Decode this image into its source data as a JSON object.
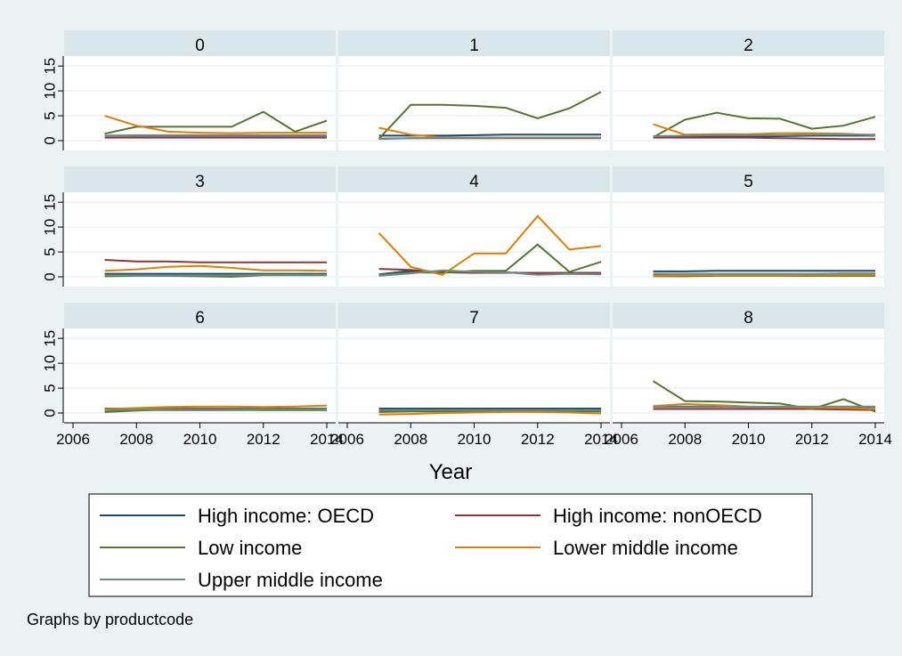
{
  "chart_data": {
    "type": "line",
    "by_variable": "productcode",
    "note": "Graphs by productcode",
    "xlabel": "Year",
    "xlim": [
      2006,
      2014
    ],
    "xticks": [
      2006,
      2008,
      2010,
      2012,
      2014
    ],
    "ylim": [
      0,
      17
    ],
    "yticks": [
      0,
      5,
      10,
      15
    ],
    "grid": true,
    "legend_position": "bottom",
    "x": [
      2007,
      2008,
      2009,
      2010,
      2011,
      2012,
      2013,
      2014
    ],
    "series_names": [
      "High income: OECD",
      "High income: nonOECD",
      "Low income",
      "Lower middle income",
      "Upper middle income"
    ],
    "series_colors": [
      "#1a476f",
      "#90353b",
      "#55752f",
      "#e37e00",
      "#6e8e84"
    ],
    "panels": [
      {
        "label": "0",
        "series": [
          [
            1.0,
            1.0,
            1.0,
            1.0,
            1.0,
            1.0,
            1.0,
            1.0
          ],
          [
            0.6,
            0.6,
            0.6,
            0.6,
            0.6,
            0.6,
            0.6,
            0.6
          ],
          [
            1.4,
            2.8,
            2.8,
            2.8,
            2.8,
            5.8,
            1.8,
            4.0
          ],
          [
            5.0,
            3.0,
            1.8,
            1.6,
            1.5,
            1.6,
            1.6,
            1.6
          ],
          [
            1.0,
            1.1,
            1.1,
            1.1,
            1.1,
            1.1,
            1.1,
            1.1
          ]
        ]
      },
      {
        "label": "1",
        "series": [
          [
            1.0,
            1.0,
            1.0,
            1.1,
            1.2,
            1.2,
            1.2,
            1.2
          ],
          [
            0.4,
            0.5,
            0.5,
            0.5,
            0.5,
            0.5,
            0.5,
            0.5
          ],
          [
            0.4,
            7.2,
            7.2,
            7.0,
            6.6,
            4.5,
            6.5,
            9.8
          ],
          [
            2.6,
            1.2,
            0.6,
            0.6,
            0.6,
            0.6,
            0.6,
            0.6
          ],
          [
            0.3,
            0.5,
            0.6,
            0.6,
            0.6,
            0.6,
            0.6,
            0.6
          ]
        ]
      },
      {
        "label": "2",
        "series": [
          [
            0.8,
            0.8,
            0.9,
            0.9,
            0.9,
            1.0,
            1.0,
            1.0
          ],
          [
            0.6,
            0.6,
            0.6,
            0.6,
            0.5,
            0.4,
            0.3,
            0.3
          ],
          [
            0.7,
            4.2,
            5.6,
            4.5,
            4.4,
            2.4,
            3.0,
            4.8
          ],
          [
            3.3,
            1.2,
            1.3,
            1.3,
            1.5,
            1.5,
            1.4,
            1.1
          ],
          [
            0.9,
            1.0,
            1.1,
            1.1,
            1.1,
            1.2,
            1.2,
            1.2
          ]
        ]
      },
      {
        "label": "3",
        "series": [
          [
            0.6,
            0.6,
            0.6,
            0.6,
            0.6,
            0.6,
            0.6,
            0.6
          ],
          [
            3.4,
            3.1,
            3.1,
            2.9,
            2.9,
            2.9,
            2.9,
            2.9
          ],
          [
            0.1,
            0.2,
            0.2,
            0.1,
            0.0,
            0.3,
            0.3,
            0.3
          ],
          [
            1.2,
            1.5,
            2.0,
            2.2,
            1.8,
            1.3,
            1.3,
            1.2
          ],
          [
            0.3,
            0.3,
            0.3,
            0.3,
            0.3,
            0.4,
            0.4,
            0.4
          ]
        ]
      },
      {
        "label": "4",
        "series": [
          [
            0.5,
            1.2,
            1.0,
            0.9,
            0.9,
            0.7,
            0.6,
            0.6
          ],
          [
            1.6,
            1.4,
            0.9,
            0.8,
            0.8,
            0.8,
            0.8,
            0.8
          ],
          [
            0.4,
            0.9,
            0.8,
            1.2,
            1.2,
            6.5,
            1.0,
            3.0
          ],
          [
            8.8,
            2.0,
            0.4,
            4.7,
            4.7,
            12.2,
            5.5,
            6.2
          ],
          [
            0.2,
            0.7,
            1.3,
            1.0,
            0.9,
            0.4,
            0.6,
            0.5
          ]
        ]
      },
      {
        "label": "5",
        "series": [
          [
            1.1,
            1.1,
            1.2,
            1.2,
            1.2,
            1.2,
            1.2,
            1.2
          ],
          [
            0.3,
            0.3,
            0.3,
            0.3,
            0.3,
            0.3,
            0.3,
            0.3
          ],
          [
            0.1,
            0.1,
            0.2,
            0.2,
            0.2,
            0.2,
            0.2,
            0.2
          ],
          [
            0.2,
            0.3,
            0.3,
            0.3,
            0.3,
            0.4,
            0.4,
            0.4
          ],
          [
            0.6,
            0.6,
            0.6,
            0.6,
            0.6,
            0.6,
            0.7,
            0.7
          ]
        ]
      },
      {
        "label": "6",
        "series": [
          [
            0.9,
            0.9,
            0.9,
            0.9,
            0.9,
            0.9,
            0.9,
            0.9
          ],
          [
            0.6,
            0.6,
            0.6,
            0.6,
            0.6,
            0.6,
            0.6,
            0.6
          ],
          [
            0.2,
            0.5,
            0.7,
            0.8,
            0.7,
            0.6,
            0.6,
            0.6
          ],
          [
            0.8,
            1.0,
            1.2,
            1.3,
            1.3,
            1.2,
            1.3,
            1.5
          ],
          [
            0.6,
            0.7,
            0.8,
            0.8,
            0.8,
            0.8,
            0.8,
            0.8
          ]
        ]
      },
      {
        "label": "7",
        "series": [
          [
            0.9,
            0.9,
            0.9,
            0.9,
            0.9,
            0.9,
            0.9,
            0.9
          ],
          [
            0.4,
            0.4,
            0.5,
            0.5,
            0.5,
            0.5,
            0.5,
            0.5
          ],
          [
            0.2,
            0.3,
            0.3,
            0.3,
            0.3,
            0.3,
            0.3,
            0.3
          ],
          [
            -0.3,
            -0.2,
            0.0,
            0.1,
            0.2,
            0.2,
            0.1,
            -0.1
          ],
          [
            0.6,
            0.6,
            0.6,
            0.6,
            0.6,
            0.6,
            0.6,
            0.6
          ]
        ]
      },
      {
        "label": "8",
        "series": [
          [
            1.3,
            1.3,
            1.3,
            1.2,
            1.2,
            1.2,
            1.2,
            1.2
          ],
          [
            0.8,
            0.8,
            0.8,
            0.8,
            0.8,
            0.8,
            0.7,
            0.6
          ],
          [
            6.4,
            2.4,
            2.3,
            2.1,
            1.9,
            0.8,
            2.8,
            0.3
          ],
          [
            1.4,
            1.8,
            1.6,
            1.3,
            1.2,
            1.1,
            1.0,
            0.8
          ],
          [
            1.2,
            1.2,
            1.2,
            1.2,
            1.3,
            1.3,
            1.3,
            1.3
          ]
        ]
      }
    ]
  }
}
